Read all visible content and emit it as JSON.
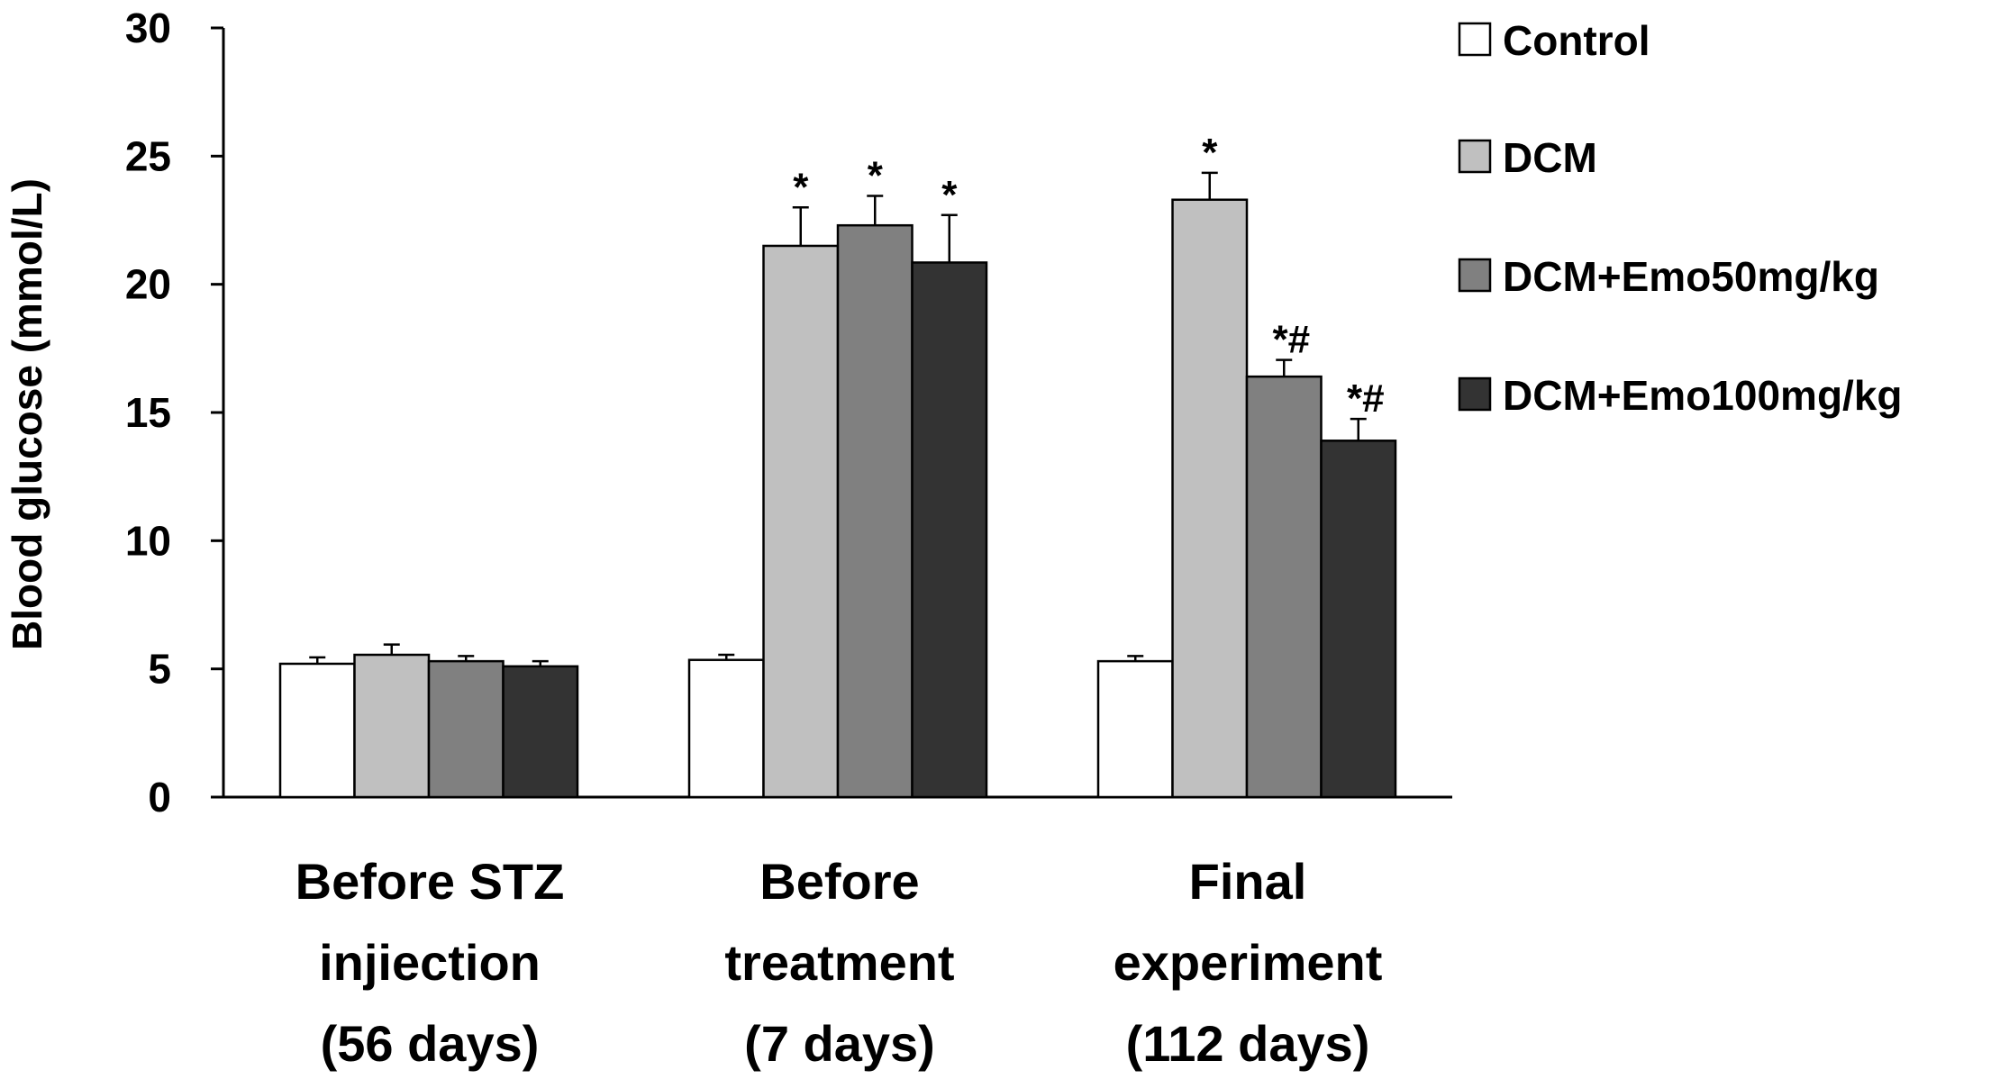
{
  "chart_data": {
    "type": "bar",
    "title": "",
    "xlabel": "",
    "ylabel": "Blood glucose (mmol/L)",
    "ylim": [
      0,
      30
    ],
    "yticks": [
      0,
      5,
      10,
      15,
      20,
      25,
      30
    ],
    "grid": false,
    "legend_position": "top-right",
    "categories": [
      [
        "Before STZ",
        "injiection",
        "(56 days)"
      ],
      [
        "Before",
        "treatment",
        "(7 days)"
      ],
      [
        "Final",
        "experiment",
        "(112 days)"
      ]
    ],
    "series": [
      {
        "name": "Control",
        "color": "#ffffff",
        "values": [
          5.2,
          5.35,
          5.3
        ],
        "errors": [
          0.25,
          0.2,
          0.2
        ],
        "annotations": [
          "",
          "",
          ""
        ]
      },
      {
        "name": "DCM",
        "color": "#c0c0c0",
        "values": [
          5.55,
          21.5,
          23.3
        ],
        "errors": [
          0.4,
          1.5,
          1.05
        ],
        "annotations": [
          "",
          "*",
          "*"
        ]
      },
      {
        "name": "DCM+Emo50mg/kg",
        "color": "#808080",
        "values": [
          5.3,
          22.3,
          16.4
        ],
        "errors": [
          0.2,
          1.15,
          0.65
        ],
        "annotations": [
          "",
          "*",
          "*#"
        ]
      },
      {
        "name": "DCM+Emo100mg/kg",
        "color": "#333333",
        "values": [
          5.1,
          20.85,
          13.9
        ],
        "errors": [
          0.2,
          1.85,
          0.85
        ],
        "annotations": [
          "",
          "*",
          "*#"
        ]
      }
    ]
  }
}
